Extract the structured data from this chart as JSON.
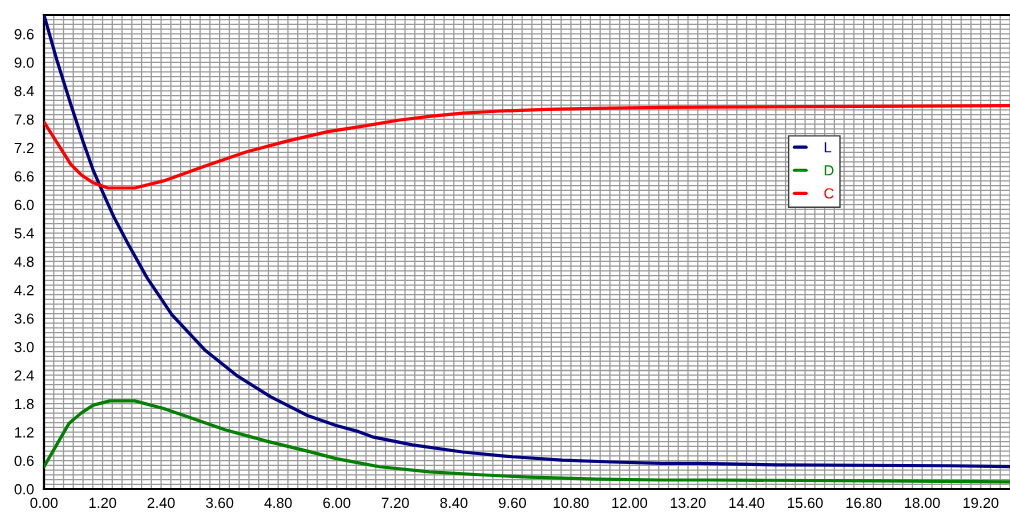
{
  "chart_data": {
    "type": "line",
    "xlim": [
      0,
      19.8
    ],
    "ylim": [
      0,
      10.0
    ],
    "xticks": [
      {
        "value": 0,
        "label": "0.00"
      },
      {
        "value": 1.2,
        "label": "1.20"
      },
      {
        "value": 2.4,
        "label": "2.40"
      },
      {
        "value": 3.6,
        "label": "3.60"
      },
      {
        "value": 4.8,
        "label": "4.80"
      },
      {
        "value": 6.0,
        "label": "6.00"
      },
      {
        "value": 7.2,
        "label": "7.20"
      },
      {
        "value": 8.4,
        "label": "8.40"
      },
      {
        "value": 9.6,
        "label": "9.60"
      },
      {
        "value": 10.8,
        "label": "10.80"
      },
      {
        "value": 12.0,
        "label": "12.00"
      },
      {
        "value": 13.2,
        "label": "13.20"
      },
      {
        "value": 14.4,
        "label": "14.40"
      },
      {
        "value": 15.6,
        "label": "15.60"
      },
      {
        "value": 16.8,
        "label": "16.80"
      },
      {
        "value": 18.0,
        "label": "18.00"
      },
      {
        "value": 19.2,
        "label": "19.20"
      }
    ],
    "yticks": [
      {
        "value": 0,
        "label": "0.0"
      },
      0.6,
      1.2,
      1.8,
      2.4,
      {
        "value": 3.0,
        "label": "3.0"
      },
      3.6,
      4.2,
      4.8,
      5.4,
      {
        "value": 6.0,
        "label": "6.0"
      },
      6.6,
      7.2,
      7.8,
      8.4,
      {
        "value": 9.0,
        "label": "9.0"
      },
      9.6
    ],
    "grid": true,
    "legend": "top right",
    "marker": "none",
    "line_style": "solid",
    "series": [
      {
        "name": "L",
        "color": "#000080",
        "x": [
          0,
          0.26,
          0.55,
          0.8,
          1.01,
          1.23,
          1.44,
          1.73,
          2.11,
          2.62,
          3.29,
          3.97,
          4.64,
          5.4,
          5.99,
          6.45,
          6.73,
          7.55,
          8.58,
          9.6,
          10.62,
          11.65,
          12.67,
          13.43,
          15.0,
          18.55,
          19.8
        ],
        "values": [
          10.0,
          9.06,
          8.11,
          7.33,
          6.72,
          6.2,
          5.72,
          5.16,
          4.46,
          3.68,
          2.94,
          2.38,
          1.95,
          1.55,
          1.34,
          1.21,
          1.1,
          0.93,
          0.78,
          0.68,
          0.61,
          0.57,
          0.54,
          0.54,
          0.51,
          0.49,
          0.47
        ]
      },
      {
        "name": "D",
        "color": "#008000",
        "x": [
          0,
          0.51,
          0.76,
          1.01,
          1.35,
          1.86,
          2.45,
          2.87,
          3.71,
          4.56,
          5.4,
          5.99,
          6.45,
          6.88,
          7.9,
          8.93,
          9.95,
          11.32,
          12.67,
          13.74,
          17.11,
          19.8
        ],
        "values": [
          0.47,
          1.38,
          1.6,
          1.77,
          1.86,
          1.86,
          1.7,
          1.55,
          1.25,
          1.01,
          0.8,
          0.64,
          0.55,
          0.47,
          0.36,
          0.3,
          0.25,
          0.21,
          0.19,
          0.19,
          0.17,
          0.15
        ]
      },
      {
        "name": "C",
        "color": "#ff0000",
        "x": [
          0,
          0.55,
          0.76,
          1.01,
          1.31,
          1.86,
          2.45,
          3.29,
          4.14,
          4.98,
          5.82,
          6.45,
          7.26,
          7.9,
          8.58,
          9.27,
          10.3,
          11.32,
          12.67,
          14.69,
          19.8
        ],
        "values": [
          7.74,
          6.85,
          6.63,
          6.46,
          6.35,
          6.35,
          6.5,
          6.81,
          7.11,
          7.34,
          7.54,
          7.64,
          7.78,
          7.86,
          7.93,
          7.97,
          8.01,
          8.03,
          8.05,
          8.06,
          8.09
        ]
      }
    ]
  }
}
